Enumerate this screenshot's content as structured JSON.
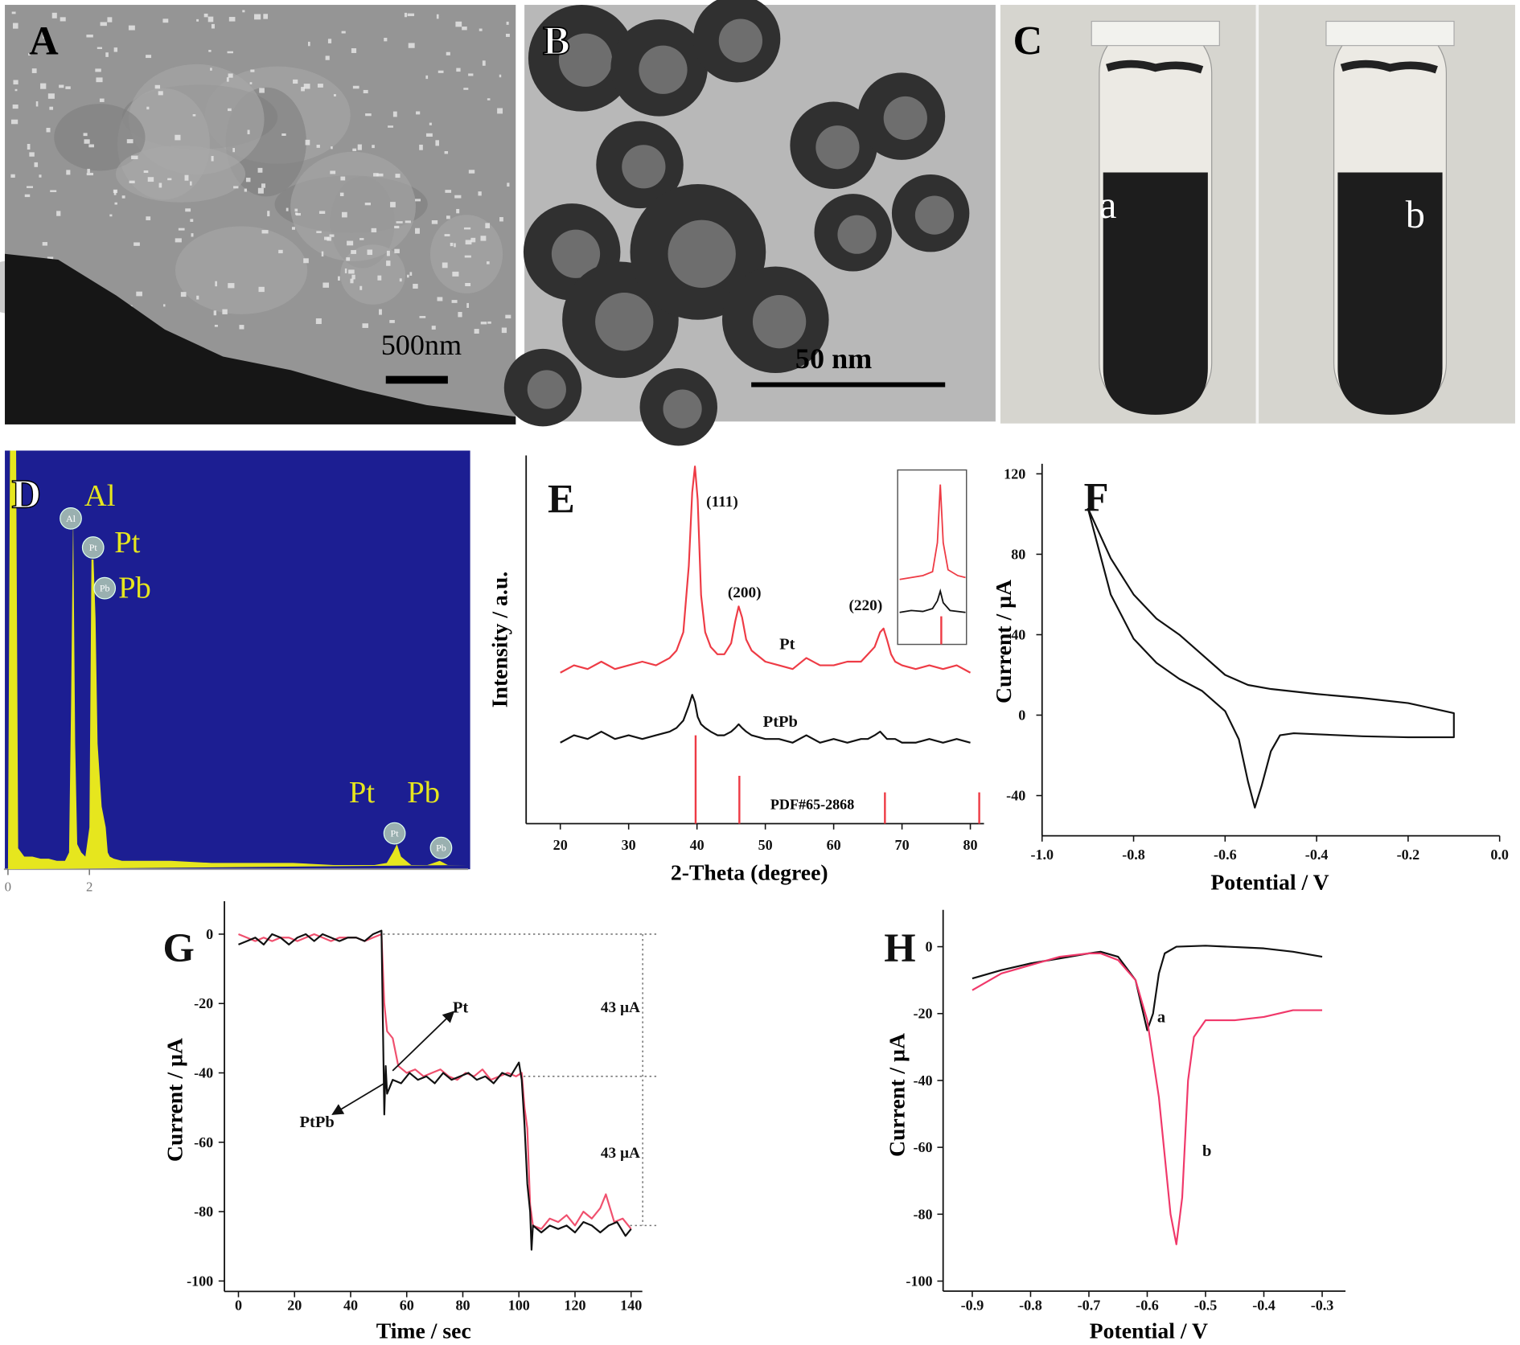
{
  "panels": [
    {
      "label": "A",
      "scale_bar": "500nm"
    },
    {
      "label": "B",
      "scale_bar": "50 nm"
    },
    {
      "label": "C",
      "samples": [
        "a",
        "b"
      ]
    }
  ],
  "chart_data": [
    {
      "type": "area",
      "panel_label": "D",
      "background": "#1c1e92",
      "color": "#e6e61e",
      "x": [
        0,
        0.05,
        0.1,
        0.2,
        0.25,
        0.4,
        0.6,
        0.8,
        1.0,
        1.2,
        1.4,
        1.5,
        1.55,
        1.6,
        1.65,
        1.7,
        1.8,
        1.9,
        2.0,
        2.05,
        2.1,
        2.15,
        2.2,
        2.3,
        2.4,
        2.45,
        2.5,
        2.6,
        2.8,
        3.0,
        4,
        5,
        6,
        7,
        8,
        9,
        9.3,
        9.45,
        9.55,
        9.65,
        9.9,
        10.3,
        10.6,
        10.8,
        11,
        11.3
      ],
      "values": [
        0,
        100,
        100,
        100,
        5,
        3,
        3,
        2.5,
        2.5,
        2,
        2,
        4,
        40,
        85,
        30,
        6,
        4,
        3,
        10,
        74,
        74,
        60,
        30,
        15,
        10,
        4,
        3,
        2.5,
        2,
        2,
        2,
        1.5,
        1.5,
        1.5,
        1,
        1,
        1.5,
        4,
        6,
        3,
        1,
        1,
        2,
        1,
        1,
        1
      ],
      "xlim": [
        -0.1,
        11.3
      ],
      "ylim": [
        0,
        100
      ],
      "xticks": [
        0,
        2
      ],
      "annotations": [
        "Al",
        "Pt",
        "Pb",
        "Pt",
        "Pb"
      ]
    },
    {
      "type": "line",
      "panel_label": "E",
      "x_label": "2-Theta (degree)",
      "y_label": "Intensity / a.u.",
      "xlim": [
        15,
        82
      ],
      "ylim": [
        0,
        100
      ],
      "xticks": [
        20,
        30,
        40,
        50,
        60,
        70,
        80
      ],
      "series": [
        {
          "name": "Pt",
          "color": "#ee3b45",
          "x": [
            20,
            22,
            24,
            26,
            28,
            30,
            32,
            34,
            36,
            37,
            38,
            38.8,
            39.3,
            39.7,
            40.1,
            40.6,
            41.2,
            42,
            43,
            44,
            45,
            45.6,
            46.1,
            46.6,
            47.2,
            48,
            50,
            52,
            54,
            56,
            58,
            60,
            62,
            64,
            65,
            66,
            66.8,
            67.3,
            67.8,
            68.4,
            69,
            70,
            72,
            74,
            76,
            78,
            80
          ],
          "values": [
            41,
            43,
            42,
            44,
            42,
            43,
            44,
            43,
            45,
            47,
            52,
            70,
            90,
            97,
            88,
            62,
            52,
            48,
            46,
            46,
            49,
            55,
            59,
            56,
            50,
            47,
            44,
            43,
            42,
            45,
            43,
            43,
            44,
            44,
            46,
            48,
            52,
            53,
            50,
            46,
            44,
            43,
            42,
            43,
            42,
            43,
            41
          ]
        },
        {
          "name": "PtPb",
          "color": "#111111",
          "x": [
            20,
            22,
            24,
            26,
            28,
            30,
            32,
            34,
            36,
            37,
            38,
            38.8,
            39.3,
            39.7,
            40.1,
            40.6,
            41.2,
            42,
            43,
            44,
            45,
            45.6,
            46.1,
            46.6,
            47.2,
            48,
            50,
            52,
            54,
            56,
            58,
            60,
            62,
            64,
            65,
            66,
            66.8,
            67.3,
            67.8,
            68.4,
            69,
            70,
            72,
            74,
            76,
            78,
            80
          ],
          "values": [
            22,
            24,
            23,
            25,
            23,
            24,
            23,
            24,
            25,
            26,
            28,
            32,
            35,
            33,
            29,
            27,
            26,
            25,
            24,
            24,
            25,
            26,
            27,
            26,
            25,
            24,
            23,
            23,
            22,
            24,
            22,
            23,
            22,
            23,
            23,
            24,
            25,
            24,
            23,
            23,
            23,
            22,
            22,
            23,
            22,
            23,
            22
          ]
        }
      ],
      "reference_pattern": {
        "name": "PDF#65-2868",
        "color": "#ee3b45",
        "x": [
          39.8,
          46.2,
          67.5,
          81.3
        ],
        "values": [
          24,
          13,
          8.5,
          8.5
        ]
      },
      "annotations": [
        "(111)",
        "(200)",
        "(220)"
      ]
    },
    {
      "type": "line",
      "panel_label": "F",
      "x_label": "Potential / V",
      "y_label": "Current / µA",
      "xlim": [
        -1,
        0
      ],
      "ylim": [
        -60,
        125
      ],
      "xticks": [
        {
          "value": -1,
          "label": "-1.0"
        },
        -0.8,
        -0.6,
        -0.4,
        -0.2,
        {
          "value": 0,
          "label": "0.0"
        }
      ],
      "yticks": [
        120,
        80,
        40,
        0,
        -40
      ],
      "series": [
        {
          "color": "#111111",
          "x": [
            -0.9,
            -0.85,
            -0.8,
            -0.75,
            -0.7,
            -0.65,
            -0.6,
            -0.55,
            -0.5,
            -0.4,
            -0.3,
            -0.2,
            -0.1,
            -0.1,
            -0.2,
            -0.3,
            -0.4,
            -0.45,
            -0.48,
            -0.5,
            -0.52,
            -0.535,
            -0.55,
            -0.57,
            -0.6,
            -0.65,
            -0.7,
            -0.75,
            -0.8,
            -0.85,
            -0.9
          ],
          "values": [
            103,
            78,
            60,
            48,
            40,
            30,
            20,
            15,
            13,
            10.5,
            8.5,
            6,
            1,
            -11,
            -11,
            -10.5,
            -9.5,
            -9,
            -10,
            -18,
            -35,
            -46,
            -33,
            -12,
            2,
            12,
            18,
            26,
            38,
            60,
            103
          ]
        }
      ]
    },
    {
      "type": "line",
      "panel_label": "G",
      "x_label": "Time / sec",
      "y_label": "Current / µA",
      "xlim": [
        -5,
        144
      ],
      "ylim": [
        -103,
        9.5
      ],
      "xticks": [
        0,
        20,
        40,
        60,
        80,
        100,
        120,
        140
      ],
      "yticks": [
        0,
        -20,
        -40,
        -60,
        -80,
        -100
      ],
      "series": [
        {
          "name": "Pt",
          "color": "#f0506e",
          "x": [
            0,
            3,
            6,
            9,
            12,
            15,
            18,
            21,
            24,
            27,
            30,
            33,
            36,
            39,
            42,
            45,
            48,
            51,
            52,
            53,
            55,
            57,
            60,
            63,
            66,
            69,
            72,
            75,
            78,
            81,
            84,
            87,
            90,
            93,
            96,
            99,
            101,
            102,
            103,
            104,
            105,
            108,
            111,
            114,
            117,
            120,
            123,
            126,
            129,
            131,
            134,
            137,
            140
          ],
          "values": [
            0,
            -1,
            -2,
            -1,
            -2,
            -1,
            -1,
            -2,
            -1,
            0,
            -1,
            -2,
            -1,
            -1,
            -1,
            -2,
            -1,
            0,
            -20,
            -28,
            -30,
            -38,
            -40,
            -39,
            -41,
            -40,
            -39,
            -41,
            -42,
            -40,
            -41,
            -39,
            -42,
            -41,
            -40,
            -41,
            -40,
            -50,
            -56,
            -78,
            -84,
            -85,
            -82,
            -83,
            -81,
            -84,
            -80,
            -82,
            -79,
            -75,
            -83,
            -82,
            -85
          ]
        },
        {
          "name": "PtPb",
          "color": "#111111",
          "x": [
            0,
            3,
            6,
            9,
            12,
            15,
            18,
            21,
            24,
            27,
            30,
            33,
            36,
            39,
            42,
            45,
            48,
            51,
            52,
            52.5,
            53,
            55,
            58,
            61,
            64,
            67,
            70,
            73,
            76,
            79,
            82,
            85,
            88,
            91,
            94,
            97,
            100,
            101,
            102,
            103,
            104,
            104.5,
            105,
            108,
            111,
            114,
            117,
            120,
            123,
            126,
            129,
            132,
            135,
            138,
            140
          ],
          "values": [
            -3,
            -2,
            -1,
            -3,
            0,
            -1,
            -3,
            -1,
            0,
            -2,
            0,
            -1,
            -2,
            -1,
            -1,
            -2,
            0,
            1,
            -52,
            -38,
            -46,
            -42,
            -43,
            -40,
            -42,
            -41,
            -43,
            -40,
            -42,
            -41,
            -40,
            -42,
            -41,
            -43,
            -40,
            -41,
            -37,
            -42,
            -55,
            -72,
            -80,
            -91,
            -84,
            -86,
            -84,
            -85,
            -84,
            -86,
            -83,
            -84,
            -86,
            -84,
            -83,
            -87,
            -85
          ]
        }
      ],
      "reference_lines": [
        0,
        -41,
        -84
      ],
      "annotations": [
        "43 µA",
        "43 µA"
      ]
    },
    {
      "type": "line",
      "panel_label": "H",
      "x_label": "Potential / V",
      "y_label": "Current / µA",
      "xlim": [
        -0.95,
        -0.26
      ],
      "ylim": [
        -103,
        11
      ],
      "xticks": [
        -0.9,
        -0.8,
        -0.7,
        -0.6,
        -0.5,
        -0.4,
        -0.3
      ],
      "yticks": [
        0,
        -20,
        -40,
        -60,
        -80,
        -100
      ],
      "series": [
        {
          "name": "a",
          "color": "#111111",
          "x": [
            -0.9,
            -0.85,
            -0.8,
            -0.75,
            -0.7,
            -0.68,
            -0.65,
            -0.62,
            -0.6,
            -0.59,
            -0.58,
            -0.57,
            -0.55,
            -0.5,
            -0.4,
            -0.35,
            -0.3
          ],
          "values": [
            -9.5,
            -7,
            -5,
            -3.5,
            -2,
            -1.5,
            -3,
            -10,
            -25,
            -20,
            -8,
            -2,
            0,
            0.3,
            -0.5,
            -1.5,
            -3
          ]
        },
        {
          "name": "b",
          "color": "#f0386a",
          "x": [
            -0.9,
            -0.85,
            -0.8,
            -0.75,
            -0.7,
            -0.68,
            -0.65,
            -0.62,
            -0.6,
            -0.58,
            -0.56,
            -0.55,
            -0.54,
            -0.53,
            -0.52,
            -0.5,
            -0.48,
            -0.45,
            -0.4,
            -0.35,
            -0.3
          ],
          "values": [
            -13,
            -8,
            -5.5,
            -3,
            -2,
            -2,
            -4,
            -10,
            -22,
            -45,
            -80,
            -89,
            -75,
            -40,
            -27,
            -22,
            -22,
            -22,
            -21,
            -19,
            -19
          ]
        }
      ]
    }
  ]
}
